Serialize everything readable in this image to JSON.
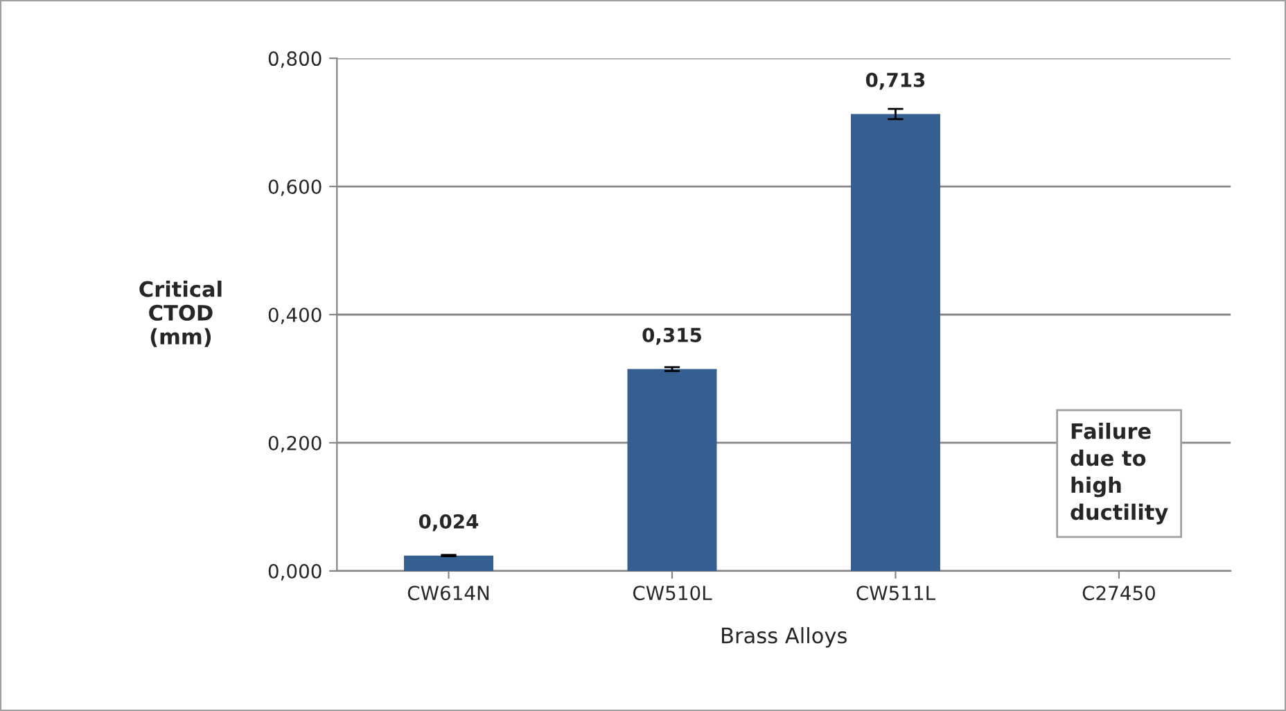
{
  "chart_data": {
    "type": "bar",
    "xlabel": "Brass Alloys",
    "ylabel": "Critical\nCTOD\n(mm)",
    "categories": [
      "CW614N",
      "CW510L",
      "CW511L",
      "C27450"
    ],
    "values": [
      0.024,
      0.315,
      0.713,
      null
    ],
    "errors": [
      0.001,
      0.003,
      0.008,
      null
    ],
    "value_labels": [
      "0,024",
      "0,315",
      "0,713",
      null
    ],
    "color": "#365f91",
    "ylim": [
      0,
      0.8
    ],
    "yticks": [
      {
        "value": 0,
        "label": "0,000"
      },
      {
        "value": 0.2,
        "label": "0,200"
      },
      {
        "value": 0.4,
        "label": "0,400"
      },
      {
        "value": 0.6,
        "label": "0,600"
      },
      {
        "value": 0.8,
        "label": "0,800"
      }
    ],
    "grid": "y",
    "annotations": [
      "Failure\ndue to\nhigh\nductility"
    ]
  }
}
